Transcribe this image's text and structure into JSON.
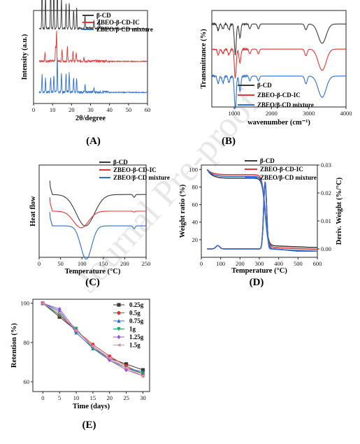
{
  "watermark": "Journal Pre-proof",
  "chart_data": [
    {
      "id": "A",
      "type": "line",
      "panel_label": "(A)",
      "xlabel": "2θ/degree",
      "ylabel": "Intensity (a.u.)",
      "xlim": [
        0,
        60
      ],
      "xticks": [
        0,
        10,
        20,
        30,
        40,
        50,
        60
      ],
      "legend_position": "top-right",
      "series": [
        {
          "name": "β-CD",
          "color": "#3a3a3a",
          "baseline": 0.82,
          "peaks": [
            [
              4.5,
              0.55
            ],
            [
              6.3,
              0.42
            ],
            [
              9.0,
              0.5
            ],
            [
              10.7,
              0.55
            ],
            [
              12.5,
              0.6
            ],
            [
              14.7,
              0.35
            ],
            [
              17.1,
              0.28
            ],
            [
              18.8,
              0.3
            ],
            [
              21.1,
              0.22
            ],
            [
              22.7,
              0.25
            ],
            [
              27.1,
              0.15
            ],
            [
              31.8,
              0.1
            ],
            [
              34.7,
              0.1
            ]
          ]
        },
        {
          "name": "ZBEO-β-CD-IC",
          "color": "#e8342f",
          "baseline": 0.46,
          "peaks": [
            [
              6.0,
              0.1
            ],
            [
              11.6,
              0.18
            ],
            [
              12.1,
              0.35
            ],
            [
              15.0,
              0.14
            ],
            [
              17.8,
              0.16
            ],
            [
              20.8,
              0.12
            ],
            [
              22.5,
              0.1
            ],
            [
              26.5,
              0.05
            ]
          ]
        },
        {
          "name": "ZBEO/β-CD mixture",
          "color": "#2a6fd6",
          "baseline": 0.12,
          "peaks": [
            [
              4.5,
              0.2
            ],
            [
              6.3,
              0.15
            ],
            [
              9.0,
              0.16
            ],
            [
              10.7,
              0.2
            ],
            [
              12.5,
              0.4
            ],
            [
              14.7,
              0.22
            ],
            [
              17.1,
              0.2
            ],
            [
              18.8,
              0.22
            ],
            [
              21.1,
              0.15
            ],
            [
              22.7,
              0.16
            ],
            [
              27.1,
              0.08
            ],
            [
              31.8,
              0.05
            ]
          ]
        }
      ]
    },
    {
      "id": "B",
      "type": "line",
      "panel_label": "(B)",
      "xlabel": "wavenumber (cm⁻¹)",
      "ylabel": "Transmittance (%)",
      "xlim": [
        400,
        4000
      ],
      "xticks": [
        1000,
        2000,
        3000,
        4000
      ],
      "legend_position": "bottom-left",
      "series": [
        {
          "name": "β-CD",
          "color": "#3a3a3a",
          "baseline": 0.86,
          "dips": [
            [
              570,
              0.06
            ],
            [
              700,
              0.05
            ],
            [
              860,
              0.06
            ],
            [
              1030,
              0.32
            ],
            [
              1155,
              0.14
            ],
            [
              1420,
              0.05
            ],
            [
              1650,
              0.05
            ],
            [
              2925,
              0.06
            ],
            [
              3360,
              0.2
            ]
          ]
        },
        {
          "name": "ZBEO-β-CD-IC",
          "color": "#e8342f",
          "baseline": 0.6,
          "dips": [
            [
              570,
              0.06
            ],
            [
              700,
              0.05
            ],
            [
              860,
              0.06
            ],
            [
              1030,
              0.3
            ],
            [
              1155,
              0.14
            ],
            [
              1420,
              0.05
            ],
            [
              1650,
              0.05
            ],
            [
              2925,
              0.07
            ],
            [
              3360,
              0.22
            ]
          ]
        },
        {
          "name": "ZBEO/β-CD mixture",
          "color": "#2a6fd6",
          "baseline": 0.32,
          "dips": [
            [
              570,
              0.08
            ],
            [
              700,
              0.07
            ],
            [
              860,
              0.07
            ],
            [
              1030,
              0.34
            ],
            [
              1155,
              0.15
            ],
            [
              1420,
              0.05
            ],
            [
              1650,
              0.05
            ],
            [
              2925,
              0.08
            ],
            [
              3360,
              0.22
            ]
          ]
        }
      ]
    },
    {
      "id": "C",
      "type": "line",
      "panel_label": "(C)",
      "xlabel": "Temperature (°C)",
      "ylabel": "Heat flow",
      "xlim": [
        0,
        250
      ],
      "xticks": [
        0,
        50,
        100,
        150,
        200,
        250
      ],
      "legend_position": "top-right",
      "series": [
        {
          "name": "β-CD",
          "color": "#3a3a3a",
          "baseline": 0.68,
          "start": 25,
          "peak_x": 108,
          "peak_depth": 0.34,
          "width": 30,
          "extra": [
            [
              222,
              0.03,
              3
            ]
          ]
        },
        {
          "name": "ZBEO-β-CD-IC",
          "color": "#e8342f",
          "baseline": 0.5,
          "start": 25,
          "peak_x": 98,
          "peak_depth": 0.18,
          "width": 25,
          "extra": [
            [
              222,
              0.01,
              3
            ]
          ]
        },
        {
          "name": "ZBEO/β-CD  mixture",
          "color": "#2a6fd6",
          "baseline": 0.34,
          "start": 25,
          "peak_x": 110,
          "peak_depth": 0.36,
          "width": 18,
          "extra": [
            [
              222,
              0.03,
              3
            ]
          ]
        }
      ]
    },
    {
      "id": "D",
      "type": "line",
      "panel_label": "(D)",
      "xlabel": "Temperature (°C)",
      "ylabel": "Weight ratio (%)",
      "y2label": "Deriv. Weight (%/°C)",
      "xlim": [
        0,
        600
      ],
      "ylim": [
        0,
        105
      ],
      "y2lim": [
        -0.003,
        0.03
      ],
      "xticks": [
        0,
        100,
        200,
        300,
        400,
        500,
        600
      ],
      "yticks": [
        20,
        40,
        60,
        80,
        100
      ],
      "y2ticks": [
        0.0,
        0.01,
        0.02,
        0.03
      ],
      "y2ticklabels": [
        "0.00",
        "0.01",
        "0.02",
        "0.03"
      ],
      "legend_position": "top-right",
      "series": [
        {
          "name": "β-CD",
          "color": "#3a3a3a",
          "plateau": 90,
          "residual": 13
        },
        {
          "name": "ZBEO-β-CD-IC",
          "color": "#e8342f",
          "plateau": 94,
          "residual": 11
        },
        {
          "name": "ZBEO/β-CD mixture",
          "color": "#2a6fd6",
          "plateau": 92,
          "residual": 9
        }
      ]
    },
    {
      "id": "E",
      "type": "line",
      "panel_label": "(E)",
      "xlabel": "Time (days)",
      "ylabel": "Retention (%)",
      "x": [
        0,
        5,
        10,
        15,
        20,
        25,
        30
      ],
      "xlim": [
        -3,
        32
      ],
      "ylim": [
        55,
        102
      ],
      "yticks": [
        60,
        80,
        100
      ],
      "legend_position": "top-right",
      "series": [
        {
          "name": "0.25g",
          "color": "#3a3a3a",
          "marker": "square",
          "values": [
            100,
            93,
            86,
            78,
            72,
            69,
            66
          ]
        },
        {
          "name": "0.5g",
          "color": "#e8342f",
          "marker": "circle",
          "values": [
            100,
            94,
            86,
            79,
            73,
            68,
            64
          ]
        },
        {
          "name": "0.75g",
          "color": "#2a6fd6",
          "marker": "triangle",
          "values": [
            100,
            96,
            85,
            77,
            72,
            67,
            65
          ]
        },
        {
          "name": "1g",
          "color": "#18a558",
          "marker": "triangle-down",
          "values": [
            100,
            94,
            87,
            77,
            71,
            67,
            64
          ]
        },
        {
          "name": "1.25g",
          "color": "#9a56d6",
          "marker": "diamond",
          "values": [
            100,
            97,
            86,
            78,
            71,
            66,
            63
          ]
        },
        {
          "name": "1.5g",
          "color": "#e88aa6",
          "marker": "triangle-left",
          "values": [
            100,
            95,
            86,
            78,
            72,
            67,
            63
          ]
        }
      ]
    }
  ]
}
